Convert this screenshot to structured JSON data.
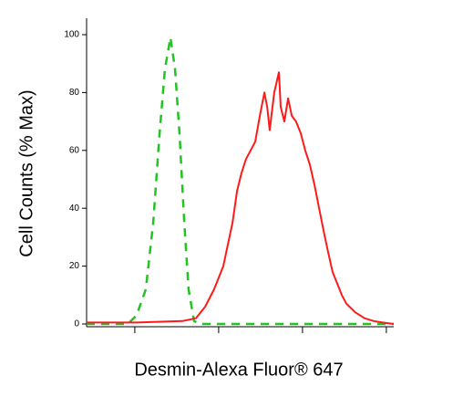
{
  "chart_data": {
    "type": "line",
    "xlabel": "Desmin-Alexa Fluor® 647",
    "ylabel": "Cell Counts (% Max)",
    "xlim": [
      0,
      100
    ],
    "xticks": [
      15.7,
      43.0,
      70.3,
      97.6
    ],
    "ylim": [
      0,
      100
    ],
    "yticks": [
      0,
      20,
      40,
      60,
      80,
      100
    ],
    "series": [
      {
        "color": "#22c322",
        "dash": true,
        "x": [
          0,
          13.4,
          16.3,
          19.3,
          21.7,
          23.7,
          25.5,
          27.3,
          28.8,
          30.3,
          31.8,
          33.2,
          35.0,
          37.1,
          100
        ],
        "values": [
          0,
          0,
          3,
          12,
          35,
          65,
          88,
          99,
          88,
          65,
          35,
          12,
          1,
          0,
          0
        ]
      },
      {
        "color": "#ff1a1a",
        "dash": false,
        "x": [
          0,
          16.3,
          31.2,
          35.6,
          38.6,
          41.5,
          44.5,
          47.5,
          49.0,
          50.4,
          51.9,
          53.4,
          54.9,
          56.4,
          57.9,
          58.8,
          59.6,
          61.1,
          62.6,
          63.2,
          64.4,
          65.6,
          66.8,
          68.2,
          69.7,
          71.2,
          72.7,
          74.2,
          75.7,
          77.2,
          78.6,
          80.1,
          81.6,
          83.1,
          84.6,
          87.5,
          90.5,
          93.5,
          96.4,
          100
        ],
        "values": [
          0.5,
          0.5,
          1,
          2,
          6,
          12,
          20,
          35,
          46,
          52,
          57,
          60,
          63,
          72,
          80,
          75,
          67,
          80,
          87,
          75,
          70,
          78,
          72,
          70,
          66,
          60,
          55,
          48,
          40,
          32,
          25,
          18,
          14,
          10,
          7,
          4,
          2,
          1,
          0.5,
          0
        ]
      }
    ]
  }
}
